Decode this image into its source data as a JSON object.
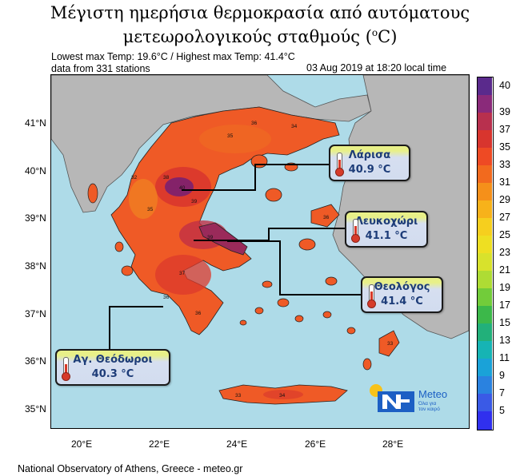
{
  "title": {
    "line1": "Μέγιστη ημερήσια θερμοκρασία από αυτόματους",
    "line2": "μετεωρολογικούς σταθμούς (",
    "line2_sup": "o",
    "line2_end": "C)"
  },
  "info": {
    "minmax": "Lowest max Temp: 19.6°C / Highest max Temp: 41.4°C",
    "stations": "data from 331 stations",
    "timestamp": "03 Aug 2019 at 18:20 local time"
  },
  "axes": {
    "lat_labels": [
      "41°N",
      "40°N",
      "39°N",
      "38°N",
      "37°N",
      "36°N",
      "35°N"
    ],
    "lon_labels": [
      "20°E",
      "22°E",
      "24°E",
      "26°E",
      "28°E"
    ]
  },
  "callouts": [
    {
      "name": "Λάρισα",
      "temp": "40.9 °C"
    },
    {
      "name": "Λευκοχώρι",
      "temp": "41.1 °C"
    },
    {
      "name": "Θεολόγος",
      "temp": "41.4 °C"
    },
    {
      "name": "Αγ. Θεόδωροι",
      "temp": "40.3 °C"
    }
  ],
  "colorbar": {
    "labels": [
      "40",
      "39",
      "37",
      "35",
      "33",
      "31",
      "29",
      "27",
      "25",
      "23",
      "21",
      "19",
      "17",
      "15",
      "13",
      "11",
      "9",
      "7",
      "5"
    ],
    "colors": [
      "#5a2a8c",
      "#8a2a7a",
      "#b8304e",
      "#d8352e",
      "#ee4a24",
      "#f26a1e",
      "#f5901a",
      "#f7b21a",
      "#f6cf1e",
      "#eedf22",
      "#d8e22c",
      "#aedc34",
      "#72cc3a",
      "#3cb84a",
      "#22b07a",
      "#16b4b4",
      "#1aa2d8",
      "#2a82e0",
      "#3a5ae6",
      "#3030ee"
    ]
  },
  "logo": {
    "brand": "Meteo",
    "tagline1": "Όλα για",
    "tagline2": "τον καιρό"
  },
  "footer": "National Observatory of Athens, Greece - meteo.gr",
  "colors": {
    "sea": "#aedbe8",
    "land_other": "#b7b7b7",
    "greece_land": "#ef5a26",
    "hot_core": "#7a2070"
  }
}
